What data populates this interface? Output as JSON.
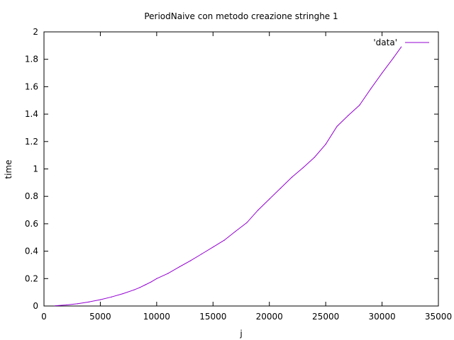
{
  "chart_data": {
    "type": "line",
    "title": "PeriodNaive con metodo creazione stringhe 1",
    "xlabel": "j",
    "ylabel": "time",
    "xlim": [
      0,
      35000
    ],
    "ylim": [
      0,
      2
    ],
    "xticks": [
      0,
      5000,
      10000,
      15000,
      20000,
      25000,
      30000,
      35000
    ],
    "yticks": [
      0,
      0.2,
      0.4,
      0.6,
      0.8,
      1,
      1.2,
      1.4,
      1.6,
      1.8,
      2
    ],
    "ytick_labels": [
      "0",
      "0.2",
      "0.4",
      "0.6",
      "0.8",
      "1",
      "1.2",
      "1.4",
      "1.6",
      "1.8",
      "2"
    ],
    "grid": false,
    "legend_position": "top-right",
    "series": [
      {
        "name": "'data'",
        "color": "#9400d3",
        "x": [
          1000,
          2000,
          3000,
          4000,
          5000,
          6000,
          7000,
          8000,
          8500,
          9000,
          9500,
          10000,
          11000,
          12000,
          13000,
          14000,
          15000,
          16000,
          17000,
          18000,
          19000,
          20000,
          21000,
          22000,
          23000,
          24000,
          25000,
          26000,
          27000,
          28000,
          29000,
          30000,
          31000,
          31700
        ],
        "y": [
          0.002,
          0.008,
          0.017,
          0.03,
          0.046,
          0.066,
          0.09,
          0.118,
          0.135,
          0.155,
          0.175,
          0.2,
          0.237,
          0.285,
          0.33,
          0.38,
          0.43,
          0.48,
          0.545,
          0.608,
          0.7,
          0.78,
          0.86,
          0.94,
          1.01,
          1.085,
          1.18,
          1.31,
          1.39,
          1.465,
          1.585,
          1.7,
          1.81,
          1.89
        ]
      }
    ]
  }
}
